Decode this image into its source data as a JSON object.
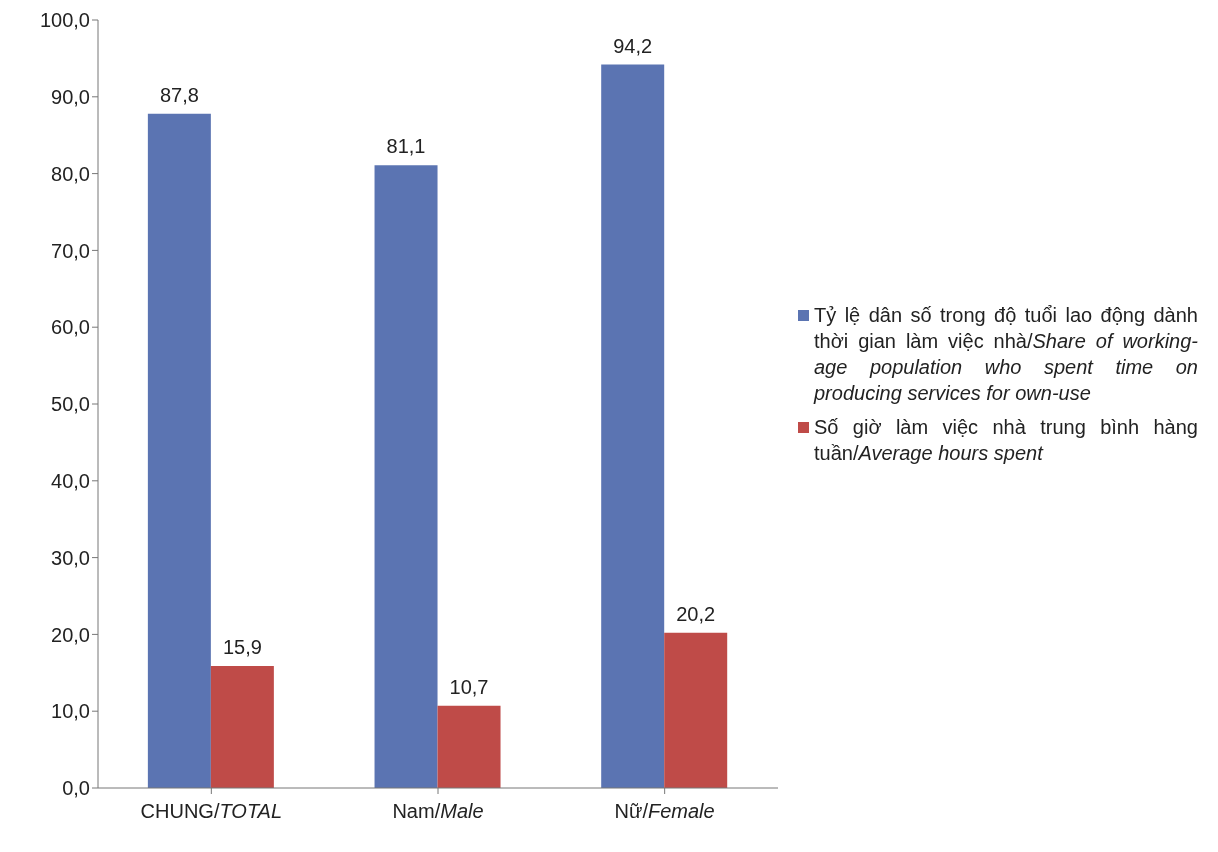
{
  "chart_data": {
    "type": "bar",
    "categories": [
      "CHUNG/TOTAL",
      "Nam/Male",
      "Nữ/Female"
    ],
    "series": [
      {
        "name": "Tỷ lệ dân số trong độ tuổi lao động dành thời gian làm việc nhà/Share of working-age population who spent time on producing services for own-use",
        "color": "#5b74b2",
        "values": [
          87.8,
          81.1,
          94.2
        ],
        "value_labels": [
          "87,8",
          "81,1",
          "94,2"
        ]
      },
      {
        "name": "Số giờ làm việc nhà trung bình hàng tuần/Average hours spent",
        "color": "#bf4b48",
        "values": [
          15.9,
          10.7,
          20.2
        ],
        "value_labels": [
          "15,9",
          "10,7",
          "20,2"
        ]
      }
    ],
    "ylim": [
      0,
      100
    ],
    "yticks": [
      {
        "value": 0,
        "label": "0,0"
      },
      {
        "value": 10,
        "label": "10,0"
      },
      {
        "value": 20,
        "label": "20,0"
      },
      {
        "value": 30,
        "label": "30,0"
      },
      {
        "value": 40,
        "label": "40,0"
      },
      {
        "value": 50,
        "label": "50,0"
      },
      {
        "value": 60,
        "label": "60,0"
      },
      {
        "value": 70,
        "label": "70,0"
      },
      {
        "value": 80,
        "label": "80,0"
      },
      {
        "value": 90,
        "label": "90,0"
      },
      {
        "value": 100,
        "label": "100,0"
      }
    ],
    "grid": false,
    "legend": "right"
  }
}
